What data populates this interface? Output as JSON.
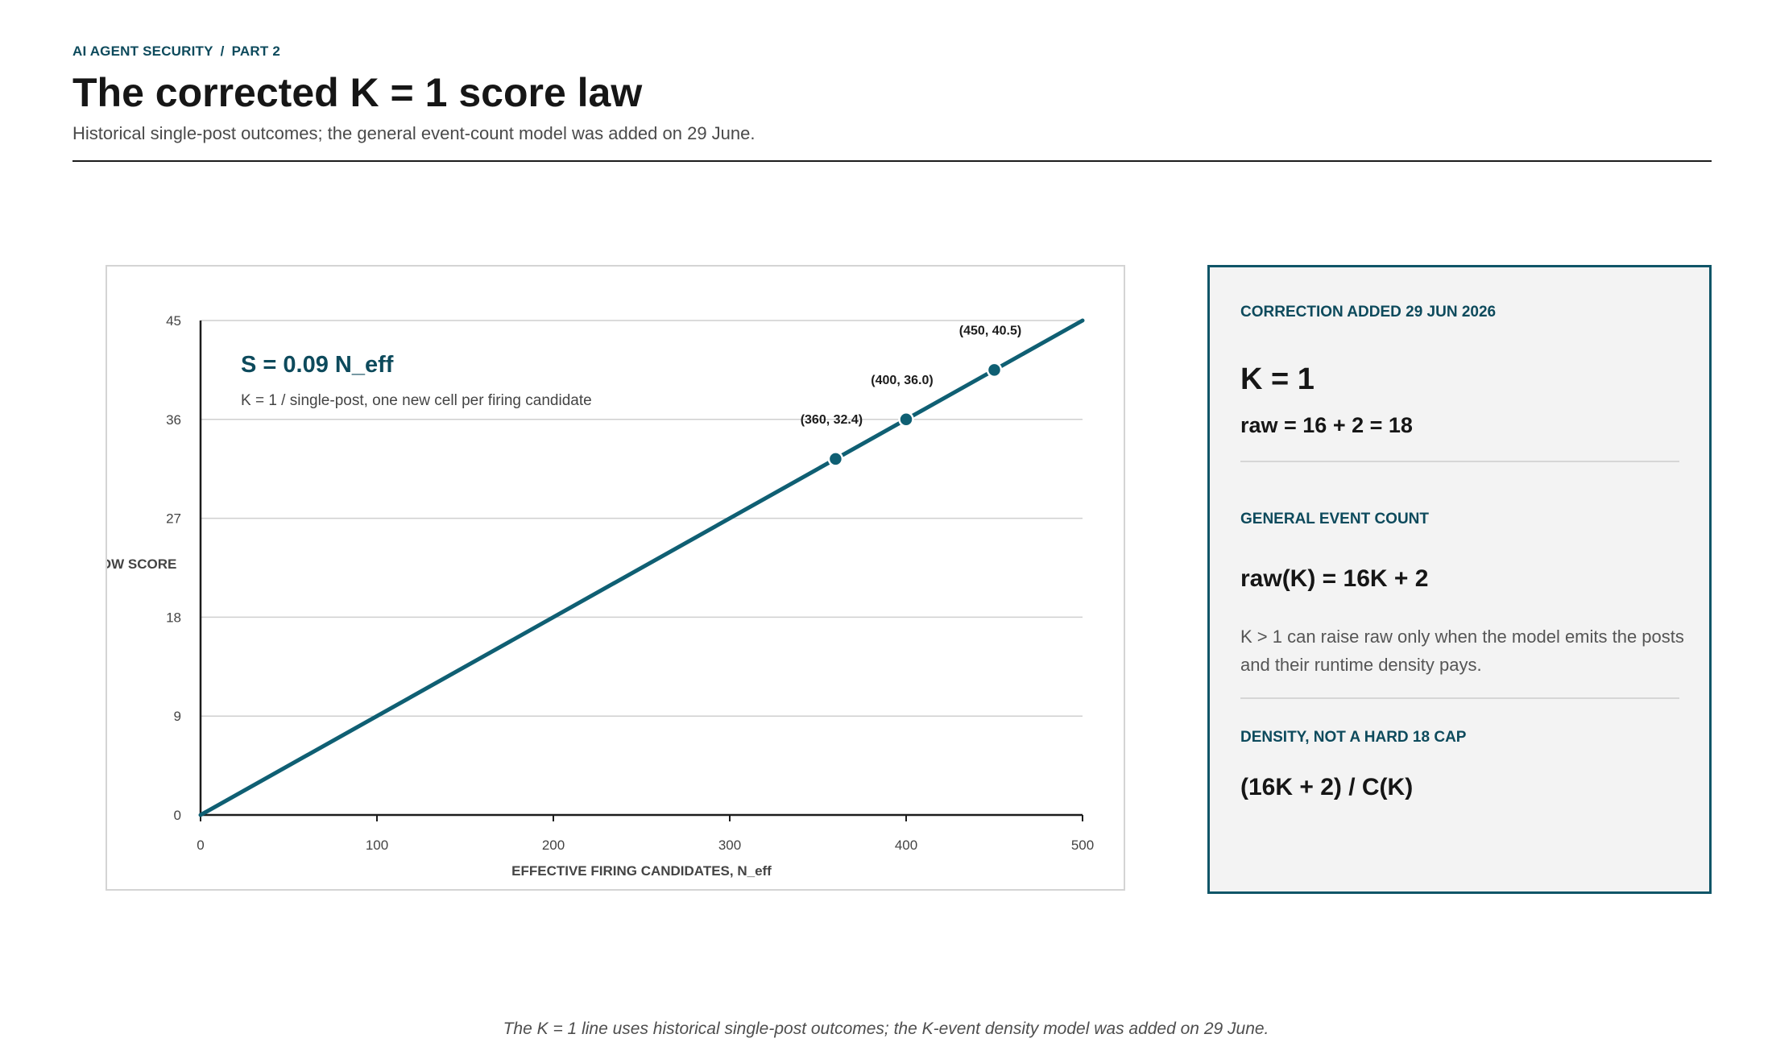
{
  "header": {
    "kicker_left": "AI AGENT SECURITY",
    "kicker_sep": "/",
    "kicker_right": "PART 2",
    "title": "The corrected K = 1 score law",
    "subtitle": "Historical single-post outcomes; the general event-count model was added on 29 June."
  },
  "chart_data": {
    "type": "line",
    "title": "",
    "equation": "S = 0.09 N_eff",
    "equation_note": "K = 1 / single-post, one new cell per firing candidate",
    "xlabel": "EFFECTIVE FIRING CANDIDATES, N_eff",
    "ylabel": "ROW SCORE",
    "xlim": [
      0,
      500
    ],
    "ylim": [
      0,
      45
    ],
    "x_ticks": [
      0,
      100,
      200,
      300,
      400,
      500
    ],
    "y_ticks": [
      0,
      9,
      18,
      27,
      36,
      45
    ],
    "grid": "horizontal",
    "series": [
      {
        "x": [
          0,
          500
        ],
        "y": [
          0,
          45
        ]
      }
    ],
    "points": [
      {
        "x": 360,
        "y": 32.4,
        "label": "(360, 32.4)"
      },
      {
        "x": 400,
        "y": 36.0,
        "label": "(400, 36.0)"
      },
      {
        "x": 450,
        "y": 40.5,
        "label": "(450, 40.5)"
      }
    ],
    "color": "#0f5f73"
  },
  "side": {
    "section1_title": "CORRECTION ADDED 29 JUN 2026",
    "section1_big": "K = 1",
    "section1_formula": "raw = 16 + 2 = 18",
    "section2_title": "GENERAL EVENT COUNT",
    "section2_formula": "raw(K) = 16K + 2",
    "section2_text": "K > 1 can raise raw only when the model emits the posts and their runtime density pays.",
    "section3_title": "DENSITY, NOT A HARD 18 CAP",
    "section3_formula": "(16K + 2) / C(K)"
  },
  "footnote": "The K = 1 line uses historical single-post outcomes; the K-event density model was added on 29 June."
}
